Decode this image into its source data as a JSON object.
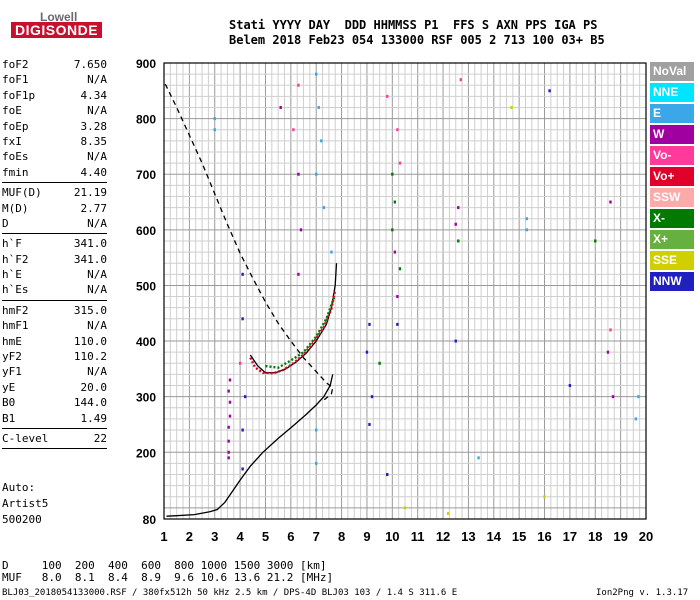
{
  "logo": {
    "line1": "Lowell",
    "line2": "DIGISONDE"
  },
  "header": {
    "line1": "Stati YYYY DAY  DDD HHMMSS P1  FFS S AXN PPS IGA PS",
    "line2": "Belem 2018 Feb23 054 133000 RSF 005 2 713 100 03+ B5"
  },
  "params": [
    [
      [
        "foF2",
        "7.650"
      ],
      [
        "foF1",
        "N/A"
      ],
      [
        "foF1p",
        "4.34"
      ],
      [
        "foE",
        "N/A"
      ],
      [
        "foEp",
        "3.28"
      ],
      [
        "fxI",
        "8.35"
      ],
      [
        "foEs",
        "N/A"
      ],
      [
        "fmin",
        "4.40"
      ]
    ],
    [
      [
        "MUF(D)",
        "21.19"
      ],
      [
        "M(D)",
        "2.77"
      ],
      [
        "D",
        "N/A"
      ]
    ],
    [
      [
        "h`F",
        "341.0"
      ],
      [
        "h`F2",
        "341.0"
      ],
      [
        "h`E",
        "N/A"
      ],
      [
        "h`Es",
        "N/A"
      ]
    ],
    [
      [
        "hmF2",
        "315.0"
      ],
      [
        "hmF1",
        "N/A"
      ],
      [
        "hmE",
        "110.0"
      ],
      [
        "yF2",
        "110.2"
      ],
      [
        "yF1",
        "N/A"
      ],
      [
        "yE",
        "20.0"
      ],
      [
        "B0",
        "144.0"
      ],
      [
        "B1",
        "1.49"
      ]
    ],
    [
      [
        "C-level",
        "22"
      ]
    ]
  ],
  "auto": {
    "line1": "Auto:",
    "line2": "Artist5",
    "line3": "500200"
  },
  "legend": [
    {
      "label": "NoVal",
      "color": "#a0a0a0"
    },
    {
      "label": "NNE",
      "color": "#00e5ff"
    },
    {
      "label": "E",
      "color": "#3aa8e8"
    },
    {
      "label": "W",
      "color": "#a000a0"
    },
    {
      "label": "Vo-",
      "color": "#ff3a9a"
    },
    {
      "label": "Vo+",
      "color": "#e0002a"
    },
    {
      "label": "SSW",
      "color": "#ffaaaa"
    },
    {
      "label": "X-",
      "color": "#007a00"
    },
    {
      "label": "X+",
      "color": "#66b040"
    },
    {
      "label": "SSE",
      "color": "#d0d000"
    },
    {
      "label": "NNW",
      "color": "#2020c0"
    }
  ],
  "bottom": {
    "d_row": "D     100  200  400  600  800 1000 1500 3000 [km]",
    "muf_row": "MUF   8.0  8.1  8.4  8.9  9.6 10.6 13.6 21.2 [MHz]"
  },
  "footer": {
    "left": "BLJ03_2018054133000.RSF / 380fx512h 50 kHz 2.5 km / DPS-4D BLJ03 103 / 1.4 S 311.6 E",
    "right": "Ion2Png v. 1.3.17"
  },
  "chart_data": {
    "type": "scatter",
    "xticks": [
      "1",
      "2",
      "3",
      "4",
      "5",
      "6",
      "7",
      "8",
      "9",
      "10",
      "11",
      "12",
      "13",
      "14",
      "15",
      "16",
      "17",
      "18",
      "19",
      "20"
    ],
    "yticks": [
      "80",
      "200",
      "300",
      "400",
      "500",
      "600",
      "700",
      "800",
      "900"
    ],
    "xlim": [
      1,
      20
    ],
    "ylim": [
      80,
      900
    ],
    "grid": true,
    "series": [
      {
        "style": "solid",
        "color": "#000000",
        "points": [
          [
            1.1,
            85
          ],
          [
            1.5,
            86
          ],
          [
            2.2,
            88
          ],
          [
            2.8,
            93
          ],
          [
            3.1,
            97
          ],
          [
            3.4,
            110
          ],
          [
            3.7,
            130
          ],
          [
            4.0,
            150
          ],
          [
            4.4,
            175
          ],
          [
            4.9,
            200
          ],
          [
            5.5,
            225
          ],
          [
            6.1,
            248
          ],
          [
            6.6,
            268
          ],
          [
            7.0,
            285
          ],
          [
            7.3,
            300
          ],
          [
            7.55,
            320
          ],
          [
            7.65,
            340
          ]
        ]
      },
      {
        "style": "solid",
        "color": "#000000",
        "points": [
          [
            4.4,
            375
          ],
          [
            4.7,
            355
          ],
          [
            5.0,
            343
          ],
          [
            5.4,
            343
          ],
          [
            5.8,
            350
          ],
          [
            6.2,
            362
          ],
          [
            6.6,
            378
          ],
          [
            7.0,
            400
          ],
          [
            7.4,
            430
          ],
          [
            7.6,
            460
          ],
          [
            7.75,
            500
          ],
          [
            7.8,
            540
          ]
        ]
      },
      {
        "style": "dashed",
        "color": "#000000",
        "points": [
          [
            1.05,
            862
          ],
          [
            1.5,
            820
          ],
          [
            2.0,
            770
          ],
          [
            2.5,
            720
          ],
          [
            3.0,
            665
          ],
          [
            3.5,
            610
          ],
          [
            4.0,
            558
          ],
          [
            4.5,
            513
          ],
          [
            5.0,
            470
          ],
          [
            5.5,
            432
          ],
          [
            6.0,
            400
          ],
          [
            6.5,
            370
          ],
          [
            7.0,
            345
          ],
          [
            7.4,
            325
          ],
          [
            7.65,
            316
          ],
          [
            7.6,
            305
          ],
          [
            7.2,
            290
          ]
        ]
      },
      {
        "style": "trace",
        "color": "#e0002a",
        "points": [
          [
            4.4,
            370
          ],
          [
            4.6,
            352
          ],
          [
            4.9,
            343
          ],
          [
            5.3,
            342
          ],
          [
            5.7,
            348
          ],
          [
            6.1,
            360
          ],
          [
            6.5,
            376
          ],
          [
            6.9,
            398
          ],
          [
            7.3,
            425
          ],
          [
            7.6,
            458
          ],
          [
            7.75,
            492
          ]
        ]
      },
      {
        "style": "trace",
        "color": "#007a00",
        "points": [
          [
            5.0,
            355
          ],
          [
            5.5,
            352
          ],
          [
            6.0,
            365
          ],
          [
            6.5,
            380
          ],
          [
            7.0,
            408
          ],
          [
            7.4,
            440
          ],
          [
            7.7,
            478
          ]
        ]
      },
      {
        "style": "dots",
        "color": "#a000a0",
        "points": [
          [
            3.55,
            200
          ],
          [
            3.55,
            220
          ],
          [
            3.55,
            245
          ],
          [
            3.6,
            265
          ],
          [
            3.6,
            290
          ],
          [
            3.55,
            310
          ],
          [
            3.6,
            330
          ],
          [
            3.55,
            190
          ],
          [
            5.6,
            820
          ],
          [
            6.3,
            700
          ],
          [
            6.4,
            600
          ],
          [
            6.3,
            520
          ],
          [
            10.1,
            560
          ],
          [
            10.2,
            480
          ],
          [
            12.5,
            610
          ],
          [
            12.6,
            640
          ],
          [
            18.6,
            650
          ],
          [
            18.5,
            380
          ],
          [
            18.7,
            300
          ]
        ]
      },
      {
        "style": "dots",
        "color": "#3aa8e8",
        "points": [
          [
            7.0,
            880
          ],
          [
            7.1,
            820
          ],
          [
            7.2,
            760
          ],
          [
            7.0,
            700
          ],
          [
            7.3,
            640
          ],
          [
            3.0,
            800
          ],
          [
            3.0,
            780
          ],
          [
            7.6,
            560
          ],
          [
            15.3,
            620
          ],
          [
            15.3,
            600
          ],
          [
            19.7,
            300
          ],
          [
            19.6,
            260
          ],
          [
            7.0,
            240
          ],
          [
            7.0,
            180
          ],
          [
            13.4,
            190
          ]
        ]
      },
      {
        "style": "dots",
        "color": "#2020c0",
        "points": [
          [
            4.1,
            170
          ],
          [
            4.1,
            240
          ],
          [
            4.2,
            300
          ],
          [
            4.1,
            440
          ],
          [
            4.1,
            520
          ],
          [
            9.1,
            430
          ],
          [
            9.0,
            380
          ],
          [
            9.2,
            300
          ],
          [
            9.1,
            250
          ],
          [
            10.2,
            430
          ],
          [
            9.8,
            160
          ],
          [
            12.5,
            400
          ],
          [
            16.2,
            850
          ],
          [
            17.0,
            320
          ]
        ]
      },
      {
        "style": "dots",
        "color": "#007a00",
        "points": [
          [
            10.0,
            700
          ],
          [
            10.1,
            650
          ],
          [
            9.5,
            360
          ],
          [
            10.0,
            600
          ],
          [
            10.3,
            530
          ],
          [
            12.6,
            580
          ],
          [
            18.0,
            580
          ]
        ]
      },
      {
        "style": "dots",
        "color": "#ff3a9a",
        "points": [
          [
            9.8,
            840
          ],
          [
            10.2,
            780
          ],
          [
            10.3,
            720
          ],
          [
            6.3,
            860
          ],
          [
            6.1,
            780
          ],
          [
            4.0,
            360
          ],
          [
            12.7,
            870
          ],
          [
            18.6,
            420
          ]
        ]
      },
      {
        "style": "dots",
        "color": "#d0d000",
        "points": [
          [
            10.5,
            100
          ],
          [
            14.7,
            820
          ],
          [
            16.0,
            120
          ],
          [
            12.2,
            90
          ]
        ]
      }
    ]
  }
}
